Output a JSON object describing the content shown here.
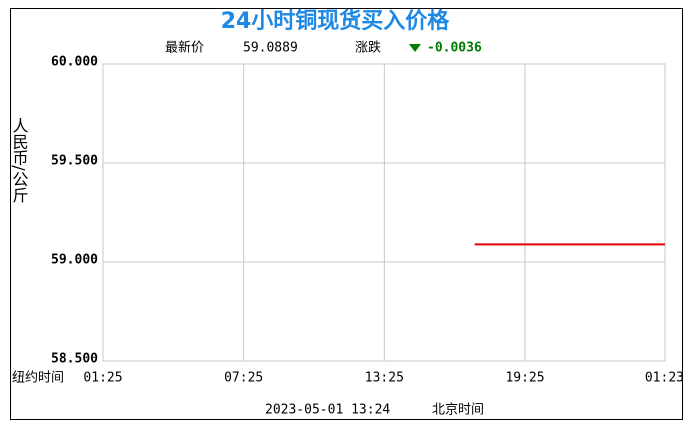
{
  "chart_data": {
    "type": "line",
    "title": "24小时铜现货买入价格",
    "latest_label": "最新价",
    "latest": 59.0889,
    "change_label": "涨跌",
    "change": -0.0036,
    "y_label": "人民币/公斤",
    "x_label": "纽约时间",
    "footer_time": "2023-05-01 13:24",
    "footer_zone": "北京时间",
    "xlim": [
      0,
      23.97
    ],
    "xticks": [
      {
        "value": 0,
        "label": "01:25"
      },
      {
        "value": 6,
        "label": "07:25"
      },
      {
        "value": 12,
        "label": "13:25"
      },
      {
        "value": 18,
        "label": "19:25"
      },
      {
        "value": 23.97,
        "label": "01:23"
      }
    ],
    "ylim": [
      58.5,
      60
    ],
    "yticks": [
      {
        "value": 58.5,
        "label": "58.500"
      },
      {
        "value": 59,
        "label": "59.000"
      },
      {
        "value": 59.5,
        "label": "59.500"
      },
      {
        "value": 60,
        "label": "60.000"
      }
    ],
    "grid": true,
    "series": [
      {
        "color": "#e00000",
        "x": [
          15.85,
          23.97
        ],
        "values": [
          59.0889,
          59.0889
        ]
      }
    ]
  }
}
